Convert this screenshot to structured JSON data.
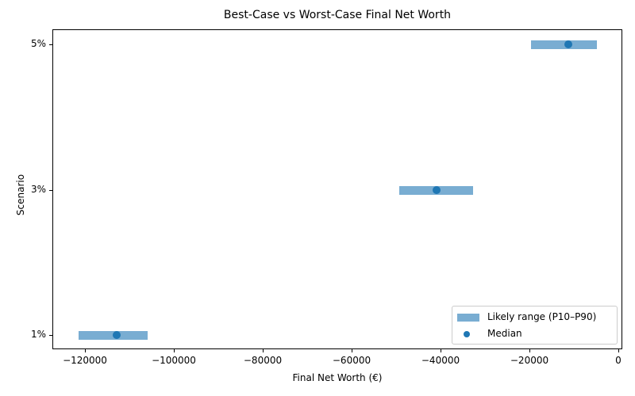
{
  "chart_data": {
    "type": "range-bar",
    "title": "Best-Case vs Worst-Case Final Net Worth",
    "xlabel": "Final Net Worth (€)",
    "ylabel": "Scenario",
    "xlim": [
      -127000,
      1000
    ],
    "x_ticks": [
      -120000,
      -100000,
      -80000,
      -60000,
      -40000,
      -20000,
      0
    ],
    "x_tick_labels": [
      "−120000",
      "−100000",
      "−80000",
      "−60000",
      "−40000",
      "−20000",
      "0"
    ],
    "categories": [
      "1%",
      "3%",
      "5%"
    ],
    "series": [
      {
        "name": "Likely range (P10–P90)",
        "type": "range",
        "p10": [
          -121400,
          -49300,
          -19600
        ],
        "p90": [
          -105900,
          -32700,
          -4800
        ]
      },
      {
        "name": "Median",
        "type": "scatter",
        "values": [
          -112900,
          -40900,
          -11300
        ]
      }
    ],
    "legend": {
      "position": "lower right",
      "entries": [
        "Likely range (P10–P90)",
        "Median"
      ]
    },
    "grid": false,
    "color": "#1f77b4"
  }
}
